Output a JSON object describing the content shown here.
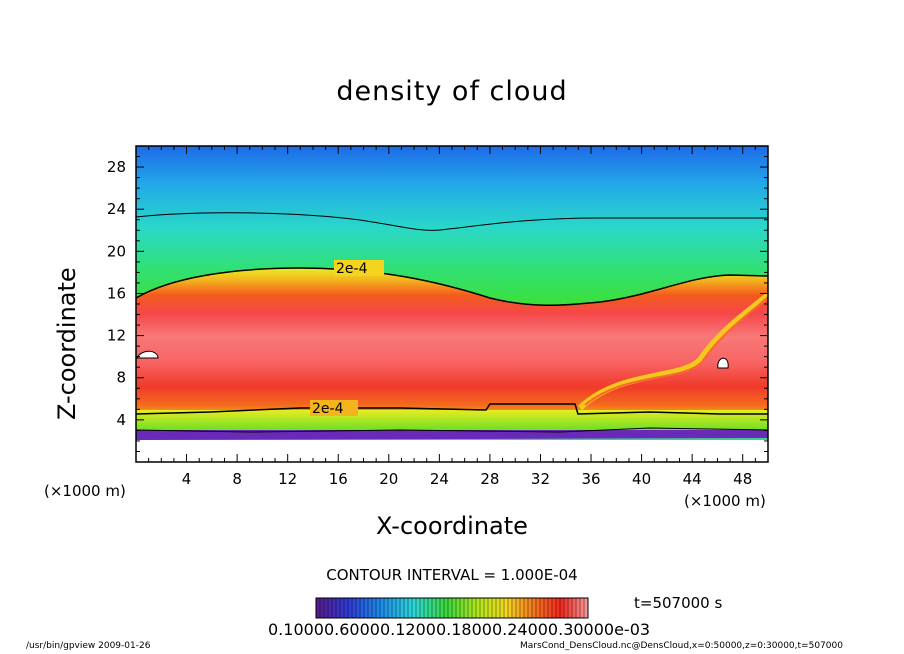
{
  "chart_data": {
    "type": "heatmap",
    "title": "density of cloud",
    "xlabel": "X-coordinate",
    "ylabel": "Z-coordinate",
    "x_unit": "(×1000 m)",
    "y_unit": "(×1000 m)",
    "xlim": [
      0,
      50
    ],
    "ylim": [
      0,
      30
    ],
    "x_ticks": [
      "4",
      "8",
      "12",
      "16",
      "20",
      "24",
      "28",
      "32",
      "36",
      "40",
      "44",
      "48"
    ],
    "y_ticks": [
      "4",
      "8",
      "12",
      "16",
      "20",
      "24",
      "28"
    ],
    "contour_labels": [
      "2e-4",
      "2e-4"
    ],
    "contour_interval": "CONTOUR INTERVAL = 1.000E-04",
    "time": "t=507000 s",
    "colorbar_labels": "0.10000.60000.12000.18000.24000.30000e-03",
    "colormap": [
      "#5a1a8a",
      "#2e3bd6",
      "#1e8ce8",
      "#2cd8d8",
      "#3cd83c",
      "#9ce81e",
      "#f4e81e",
      "#f49a1e",
      "#f0281e",
      "#f88a8a"
    ]
  },
  "footer": {
    "left": "/usr/bin/gpview   2009-01-26",
    "right": "MarsCond_DensCloud.nc@DensCloud,x=0:50000,z=0:30000,t=507000"
  }
}
